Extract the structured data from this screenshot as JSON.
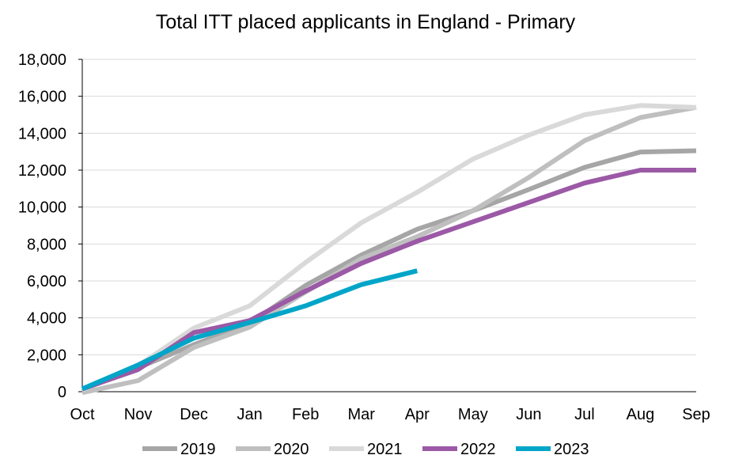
{
  "chart_data": {
    "type": "line",
    "title": "Total ITT placed applicants in England - Primary",
    "xlabel": "",
    "ylabel": "",
    "categories": [
      "Oct",
      "Nov",
      "Dec",
      "Jan",
      "Feb",
      "Mar",
      "Apr",
      "May",
      "Jun",
      "Jul",
      "Aug",
      "Sep"
    ],
    "ylim": [
      0,
      18000
    ],
    "yticks": [
      0,
      2000,
      4000,
      6000,
      8000,
      10000,
      12000,
      14000,
      16000,
      18000
    ],
    "ytick_labels": [
      "0",
      "2,000",
      "4,000",
      "6,000",
      "8,000",
      "10,000",
      "12,000",
      "14,000",
      "16,000",
      "18,000"
    ],
    "grid": "horizontal",
    "legend_position": "bottom",
    "series": [
      {
        "name": "2019",
        "color": "#a6a6a6",
        "values": [
          150,
          1300,
          2550,
          3700,
          5750,
          7400,
          8800,
          9800,
          10950,
          12150,
          12980,
          13050
        ]
      },
      {
        "name": "2020",
        "color": "#bfbfbf",
        "values": [
          -50,
          600,
          2400,
          3500,
          5400,
          7200,
          8400,
          9800,
          11600,
          13600,
          14850,
          15400
        ]
      },
      {
        "name": "2021",
        "color": "#d9d9d9",
        "values": [
          100,
          1400,
          3450,
          4650,
          7000,
          9150,
          10800,
          12600,
          13900,
          15000,
          15500,
          15400
        ]
      },
      {
        "name": "2022",
        "color": "#9b59a6",
        "values": [
          150,
          1200,
          3200,
          3850,
          5450,
          6950,
          8150,
          9200,
          10250,
          11300,
          12000,
          12000
        ]
      },
      {
        "name": "2023",
        "color": "#00a5c8",
        "values": [
          150,
          1450,
          2900,
          3750,
          4650,
          5800,
          6550,
          null,
          null,
          null,
          null,
          null
        ]
      }
    ]
  }
}
